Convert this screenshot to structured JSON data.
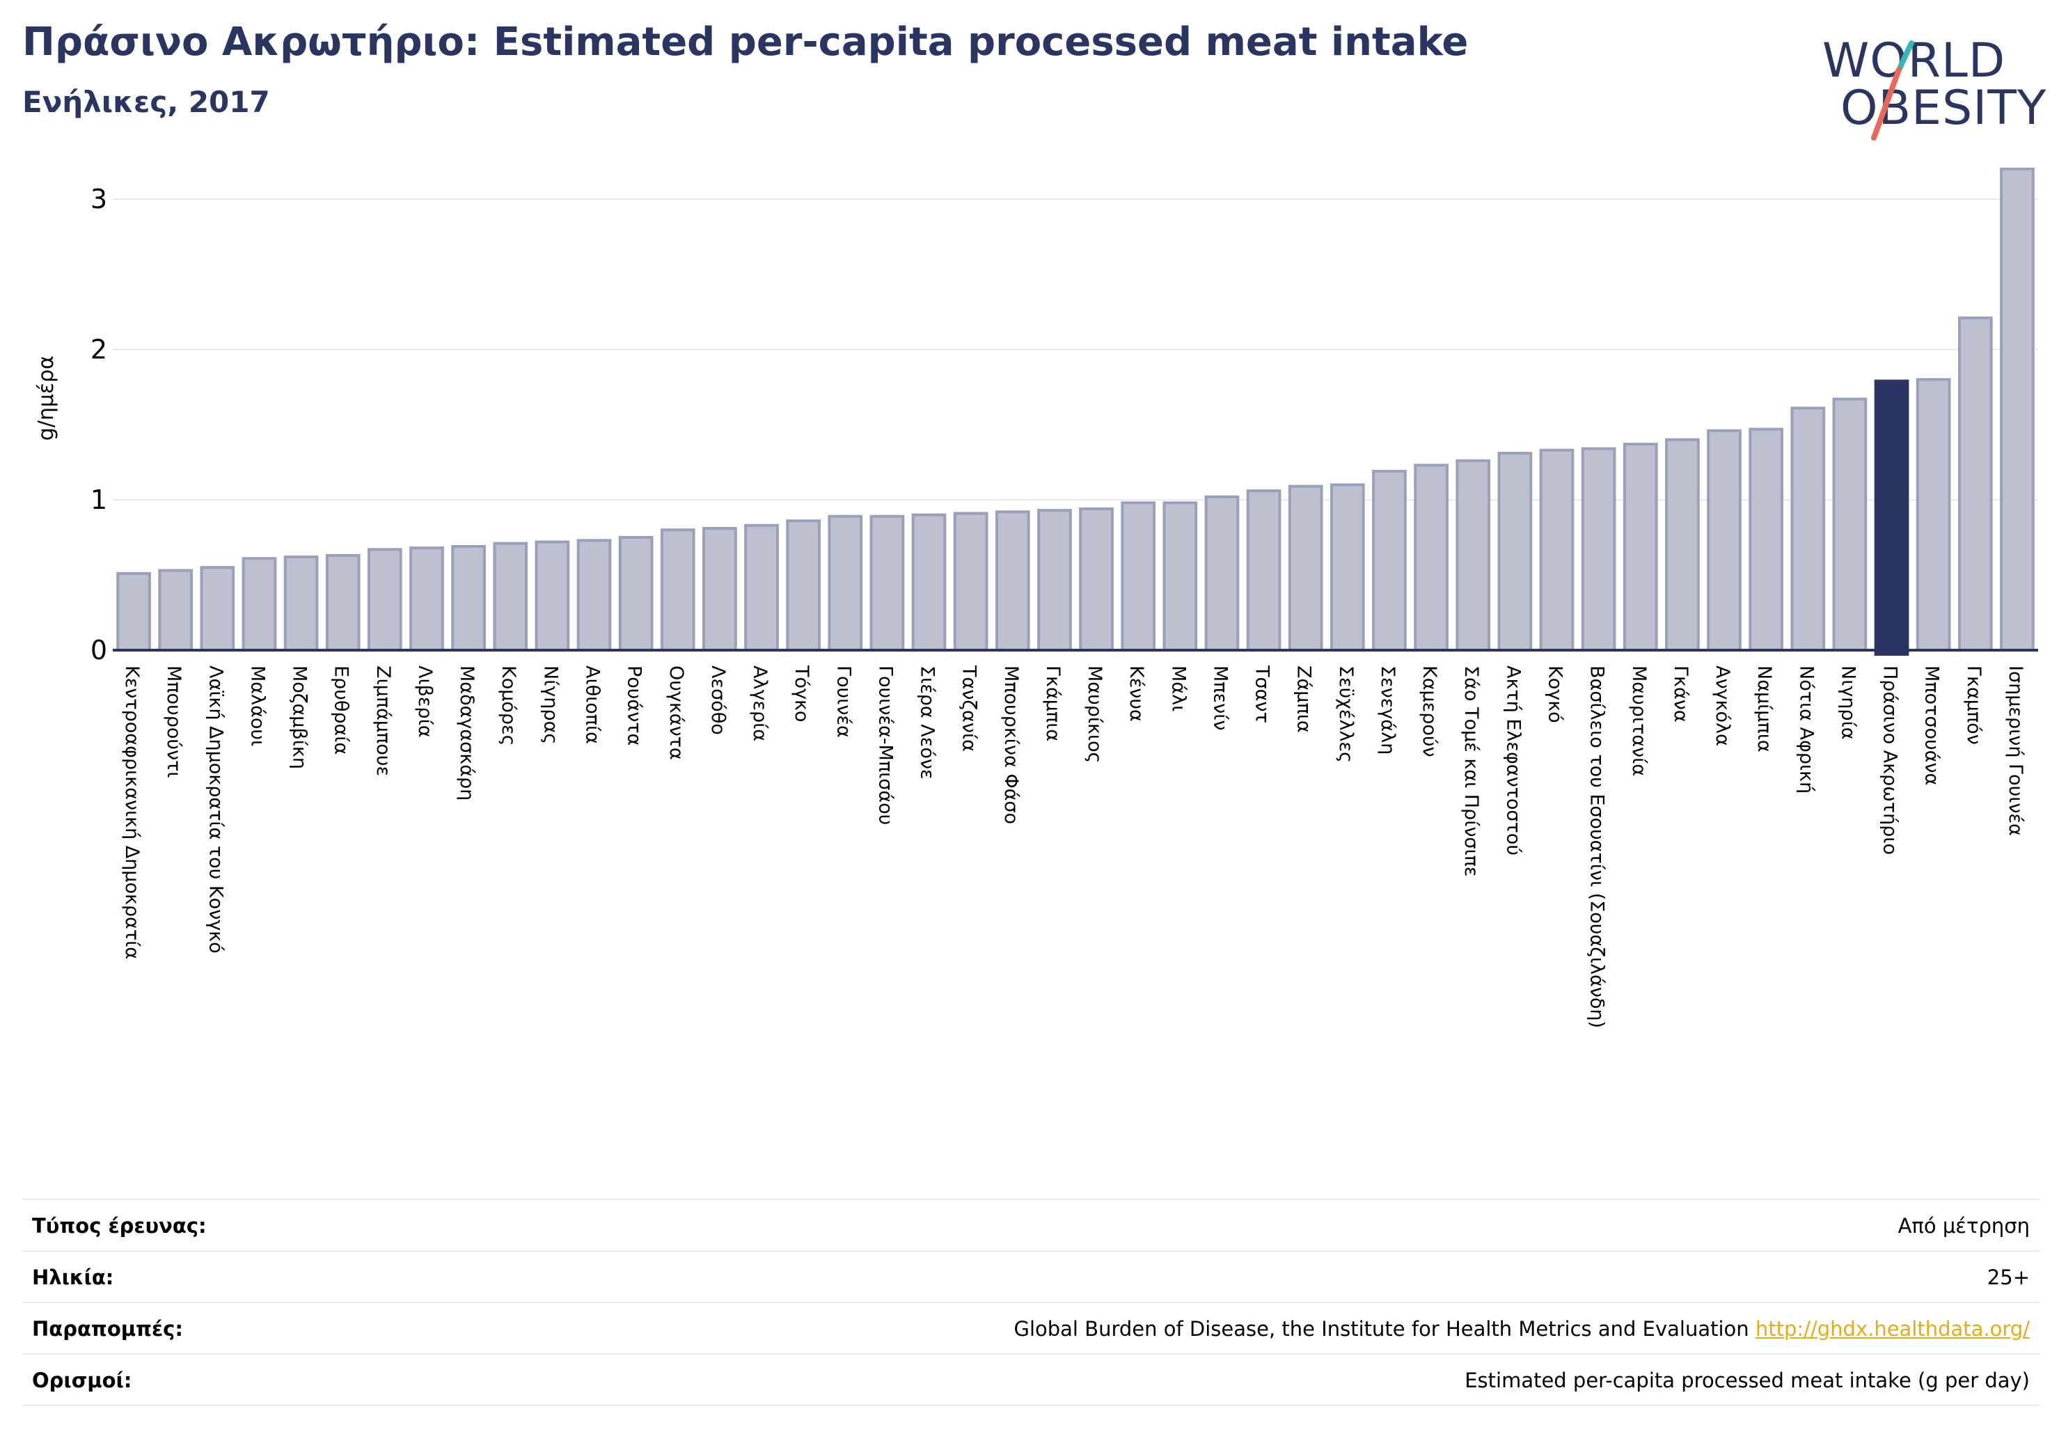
{
  "header": {
    "title": "Πράσινο Ακρωτήριο: Estimated per-capita processed meat intake",
    "subtitle": "Ενήλικες, 2017"
  },
  "logo": {
    "line1": "WORLD",
    "line2": "OBESITY",
    "accent_teal": "#37b7b3",
    "accent_coral": "#e8695a"
  },
  "colors": {
    "bar_fill": "#bcc0cf",
    "bar_stroke": "#9aa0b9",
    "highlight": "#2b3562",
    "grid": "#e6ecef",
    "axis": "#2b3562"
  },
  "chart_data": {
    "type": "bar",
    "ylabel": "g/ημέρα",
    "ylim": [
      0,
      3.3
    ],
    "yticks": [
      0,
      1,
      2,
      3
    ],
    "grid": true,
    "highlight_category": "Πράσινο Ακρωτήριο",
    "categories": [
      "Κεντροαφρικανική Δημοκρατία",
      "Μπουρούντι",
      "Λαϊκή Δημοκρατία του Κονγκό",
      "Μαλάουι",
      "Μοζαμβίκη",
      "Ερυθραία",
      "Ζιμπάμπουε",
      "Λιβερία",
      "Μαδαγασκάρη",
      "Κομόρες",
      "Νίγηρας",
      "Αιθιοπία",
      "Ρουάντα",
      "Ουγκάντα",
      "Λεσόθο",
      "Αλγερία",
      "Τόγκο",
      "Γουινέα",
      "Γουινέα-Μπισάου",
      "Σιέρα Λεόνε",
      "Τανζανία",
      "Μπουρκίνα Φάσο",
      "Γκάμπια",
      "Μαυρίκιος",
      "Κένυα",
      "Μάλι",
      "Μπενίν",
      "Τσαντ",
      "Ζάμπια",
      "Σεϋχέλλες",
      "Σενεγάλη",
      "Καμερούν",
      "Σάο Τομέ και Πρίνσιπε",
      "Ακτή Ελεφαντοστού",
      "Κογκό",
      "Βασίλειο του Εσουατίνι (Σουαζιλάνδη)",
      "Μαυριτανία",
      "Γκάνα",
      "Ανγκόλα",
      "Ναμίμπια",
      "Νότια Αφρική",
      "Νιγηρία",
      "Πράσινο Ακρωτήριο",
      "Μποτσουάνα",
      "Γκαμπόν",
      "Ισημερινή Γουινέα"
    ],
    "values": [
      0.51,
      0.53,
      0.55,
      0.61,
      0.62,
      0.63,
      0.67,
      0.68,
      0.69,
      0.71,
      0.72,
      0.73,
      0.75,
      0.8,
      0.81,
      0.83,
      0.86,
      0.89,
      0.89,
      0.9,
      0.91,
      0.92,
      0.93,
      0.94,
      0.98,
      0.98,
      1.02,
      1.06,
      1.09,
      1.1,
      1.19,
      1.23,
      1.26,
      1.31,
      1.33,
      1.34,
      1.37,
      1.4,
      1.46,
      1.47,
      1.61,
      1.67,
      1.79,
      1.8,
      2.21,
      3.2
    ]
  },
  "info": [
    {
      "label": "Τύπος έρευνας:",
      "value": "Από μέτρηση",
      "link": ""
    },
    {
      "label": "Ηλικία:",
      "value": "25+",
      "link": ""
    },
    {
      "label": "Παραπομπές:",
      "value": "Global Burden of Disease, the Institute for Health Metrics and Evaluation",
      "link": "http://ghdx.healthdata.org/"
    },
    {
      "label": "Ορισμοί:",
      "value": "Estimated per-capita processed meat intake (g per day)",
      "link": ""
    }
  ]
}
